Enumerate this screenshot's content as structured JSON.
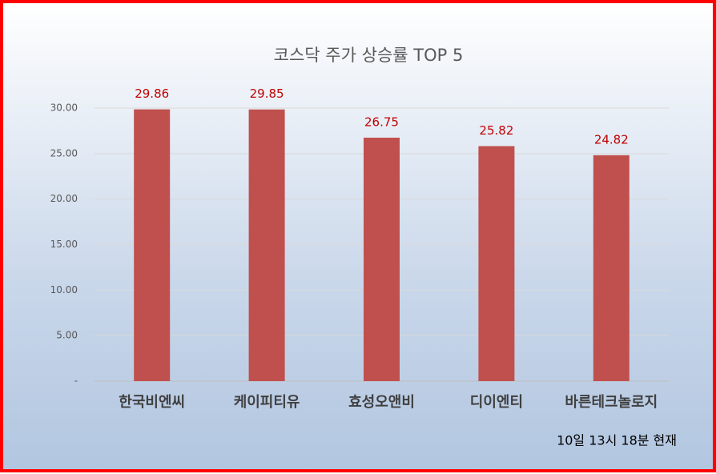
{
  "chart_data": {
    "type": "bar",
    "title": "코스닥 주가 상승률 TOP 5",
    "categories": [
      "한국비엔씨",
      "케이피티유",
      "효성오앤비",
      "디이엔티",
      "바른테크놀로지"
    ],
    "values": [
      29.86,
      29.85,
      26.75,
      25.82,
      24.82
    ],
    "color": "#c0504d",
    "value_label_color": "#c00000",
    "ylim": [
      0,
      30
    ],
    "yticks": [
      {
        "value": 0,
        "label": "-"
      },
      {
        "value": 5,
        "label": "5.00"
      },
      {
        "value": 10,
        "label": "10.00"
      },
      {
        "value": 15,
        "label": "15.00"
      },
      {
        "value": 20,
        "label": "20.00"
      },
      {
        "value": 25,
        "label": "25.00"
      },
      {
        "value": 30,
        "label": "30.00"
      }
    ],
    "grid": true,
    "annotation": "10일 13시 18분 현재"
  }
}
